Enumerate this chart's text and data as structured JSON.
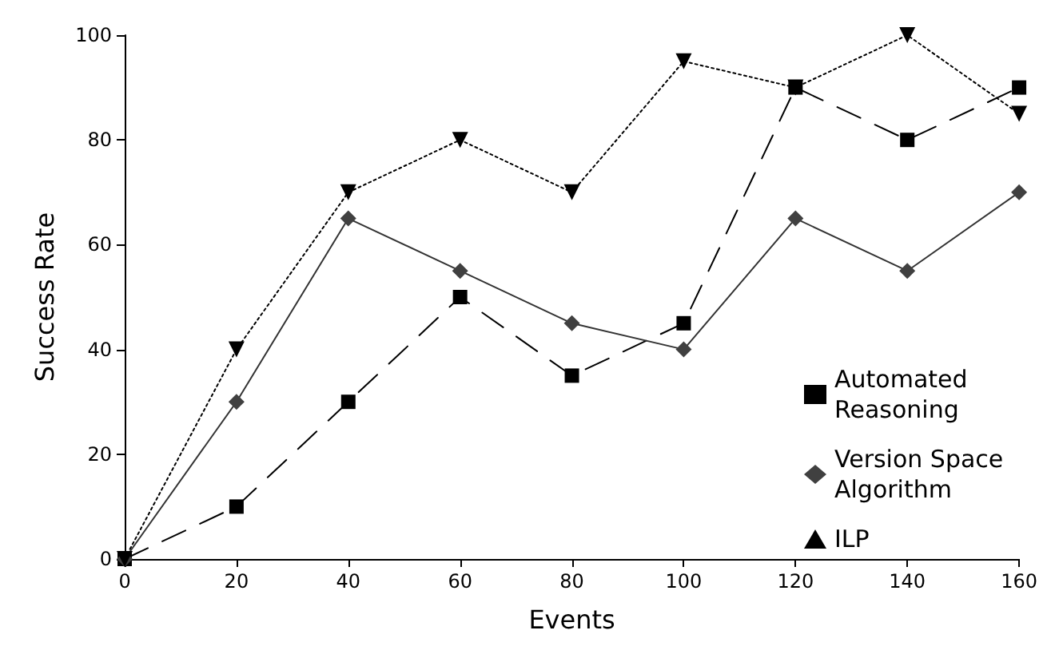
{
  "chart_data": {
    "type": "line",
    "xlabel": "Events",
    "ylabel": "Success Rate",
    "x": [
      0,
      20,
      40,
      60,
      80,
      100,
      120,
      140,
      160
    ],
    "xlim": [
      0,
      160
    ],
    "xticks": [
      0,
      20,
      40,
      60,
      80,
      100,
      120,
      140,
      160
    ],
    "ylim": [
      0,
      100
    ],
    "yticks": [
      0,
      20,
      40,
      60,
      80,
      100
    ],
    "grid": false,
    "legend": "right",
    "series": [
      {
        "name": "Automated Reasoning",
        "color": "#000000",
        "marker": "square",
        "line_style": "dashed",
        "values": [
          0,
          10,
          30,
          50,
          35,
          45,
          90,
          80,
          90
        ]
      },
      {
        "name": "Version Space Algorithm",
        "color": "#404040",
        "marker": "diamond",
        "line_style": "solid",
        "values": [
          0,
          30,
          65,
          55,
          45,
          40,
          65,
          55,
          70
        ]
      },
      {
        "name": "ILP",
        "color": "#000000",
        "marker": "triangle",
        "line_style": "dotted",
        "values": [
          0,
          40,
          70,
          80,
          70,
          95,
          90,
          100,
          85
        ]
      }
    ]
  }
}
